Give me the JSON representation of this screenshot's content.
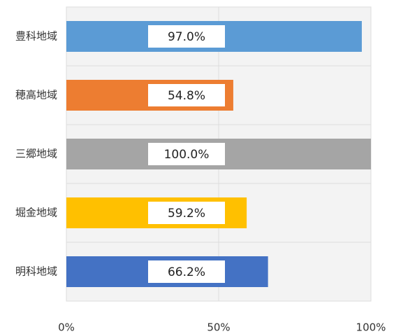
{
  "chart_data": {
    "type": "bar",
    "orientation": "horizontal",
    "categories": [
      "豊科地域",
      "穂高地域",
      "三郷地域",
      "堀金地域",
      "明科地域"
    ],
    "values": [
      97.0,
      54.8,
      100.0,
      59.2,
      66.2
    ],
    "value_labels": [
      "97.0%",
      "54.8%",
      "100.0%",
      "59.2%",
      "66.2%"
    ],
    "colors": [
      "#5b9bd5",
      "#ed7d31",
      "#a5a5a5",
      "#ffc000",
      "#4472c4"
    ],
    "xlim": [
      0,
      100
    ],
    "xticks": [
      {
        "value": 0,
        "label": "0%"
      },
      {
        "value": 50,
        "label": "50%"
      },
      {
        "value": 100,
        "label": "100%"
      }
    ],
    "grid": true
  }
}
